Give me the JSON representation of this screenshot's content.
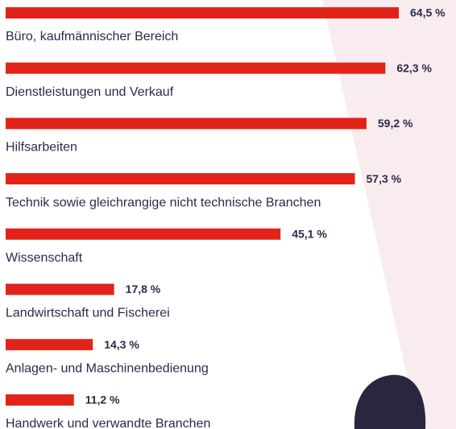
{
  "chart_data": {
    "type": "bar",
    "orientation": "horizontal",
    "color": "#e2231a",
    "categories": [
      "Büro, kaufmännischer Bereich",
      "Dienstleistungen und Verkauf",
      "Hilfsarbeiten",
      "Technik sowie gleichrangige nicht technische Branchen",
      "Wissenschaft",
      "Landwirtschaft und Fischerei",
      "Anlagen- und Maschinenbedienung",
      "Handwerk und verwandte Branchen"
    ],
    "values": [
      64.5,
      62.3,
      59.2,
      57.3,
      45.1,
      17.8,
      14.3,
      11.2
    ],
    "value_labels": [
      "64,5 %",
      "62,3 %",
      "59,2 %",
      "57,3 %",
      "45,1 %",
      "17,8 %",
      "14,3 %",
      "11,2 %"
    ]
  }
}
